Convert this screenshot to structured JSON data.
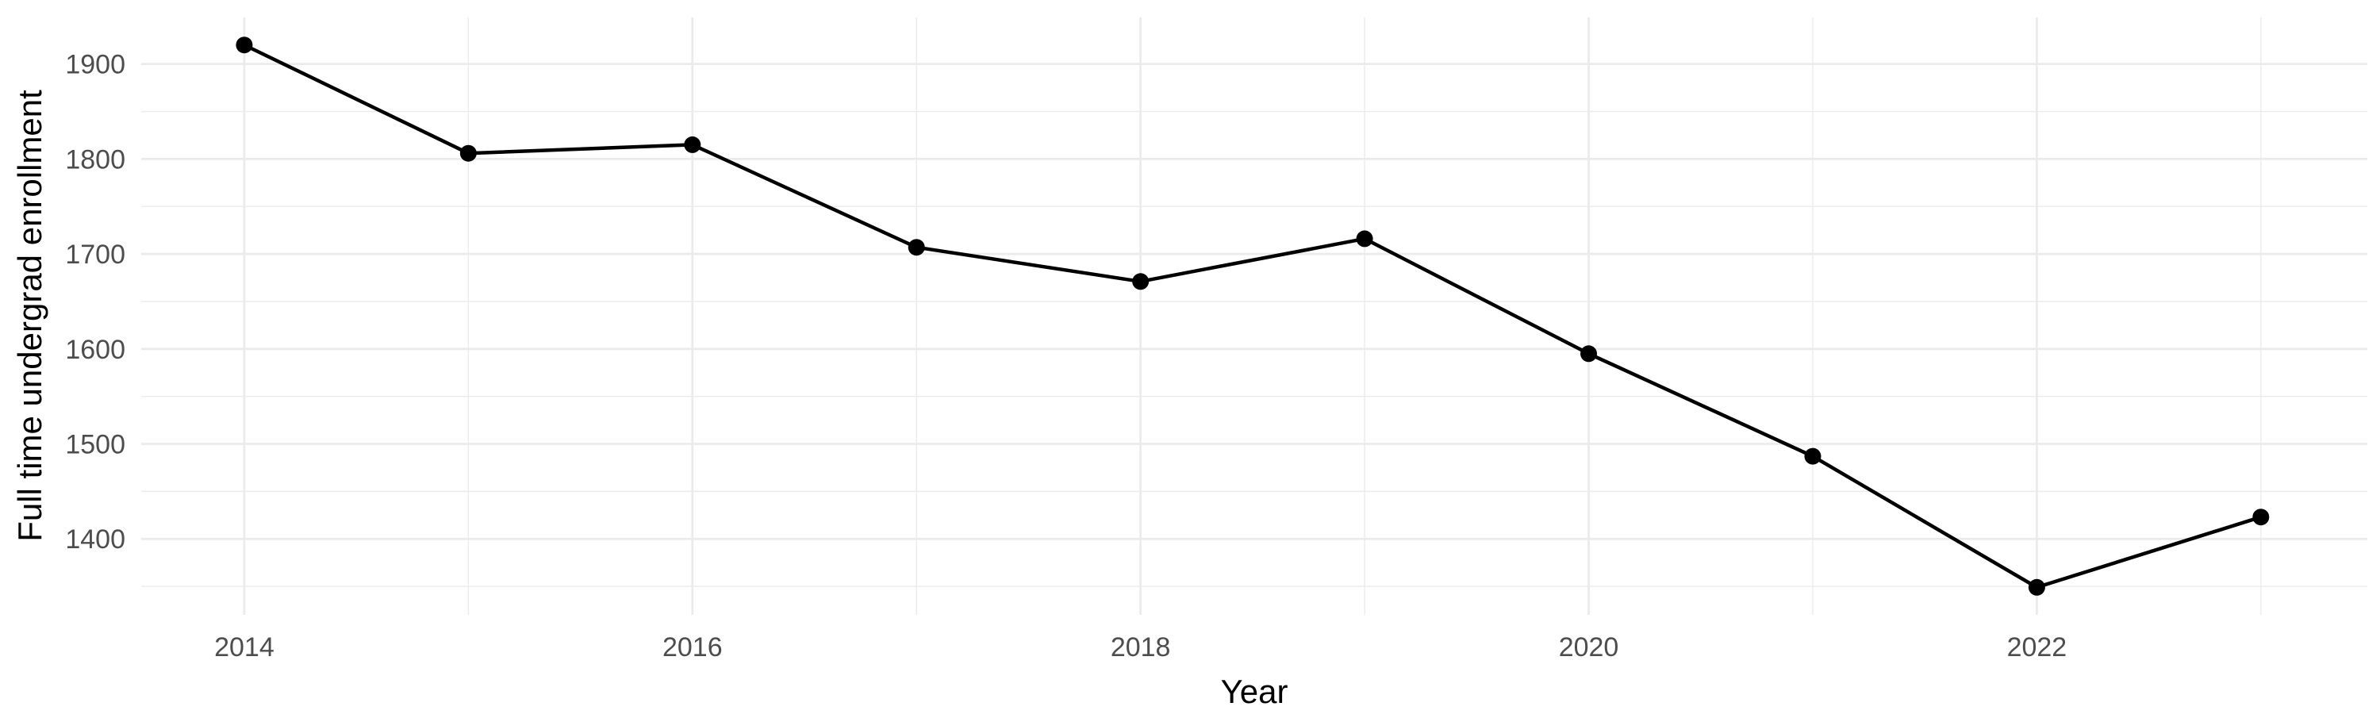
{
  "chart_data": {
    "type": "line",
    "title": "",
    "xlabel": "Year",
    "ylabel": "Full time undergrad enrollment",
    "x": [
      2014,
      2015,
      2016,
      2017,
      2018,
      2019,
      2020,
      2021,
      2022,
      2023
    ],
    "series": [
      {
        "name": "Full time undergrad enrollment",
        "values": [
          1920,
          1806,
          1815,
          1707,
          1671,
          1716,
          1595,
          1487,
          1349,
          1423
        ]
      }
    ],
    "x_tick_labels": [
      "2014",
      "2016",
      "2018",
      "2020",
      "2022"
    ],
    "x_major_ticks": [
      2014,
      2016,
      2018,
      2020,
      2022
    ],
    "x_minor_ticks": [
      2015,
      2017,
      2019,
      2021,
      2023
    ],
    "y_tick_labels": [
      "1400",
      "1500",
      "1600",
      "1700",
      "1800",
      "1900"
    ],
    "y_major_ticks": [
      1400,
      1500,
      1600,
      1700,
      1800,
      1900
    ],
    "y_minor_ticks": [
      1350,
      1450,
      1550,
      1650,
      1750,
      1850
    ],
    "xlim": [
      2013.54,
      2023.475
    ],
    "ylim": [
      1320,
      1949
    ],
    "grid": "on",
    "legend": "none",
    "style": "ggplot-theme-minimal",
    "colors": {
      "background": "#FFFFFF",
      "grid": "#EBEBEB",
      "line": "#000000",
      "point": "#000000",
      "tick_label": "#4D4D4D",
      "axis_title": "#000000"
    }
  }
}
